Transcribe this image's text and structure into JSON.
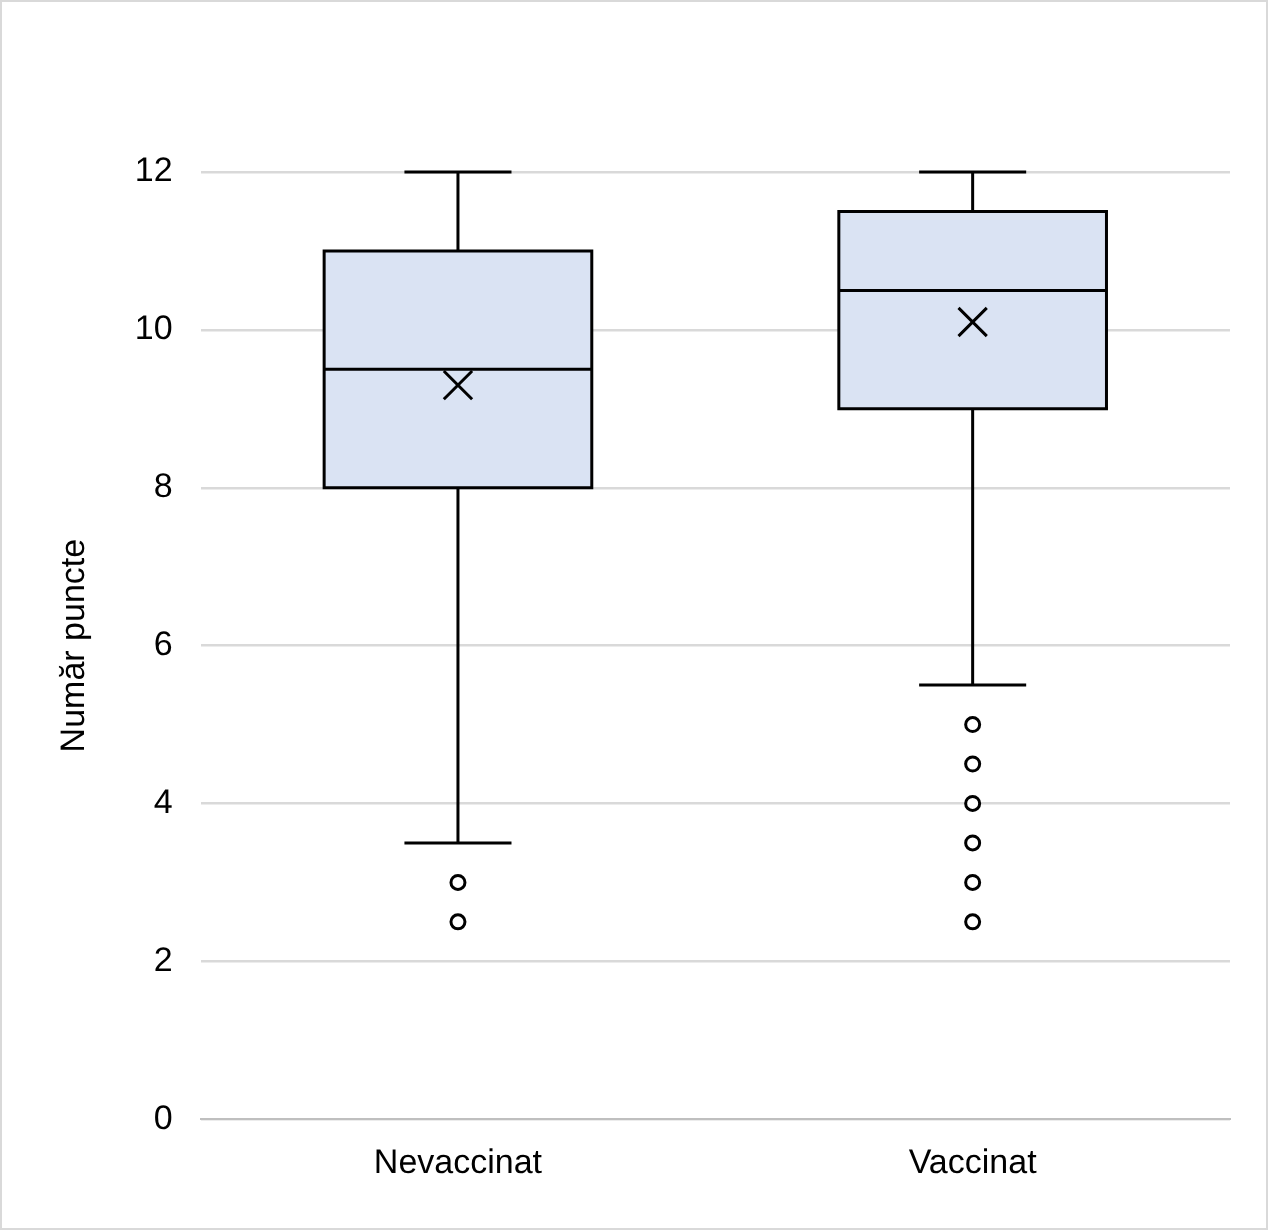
{
  "chart_data": {
    "type": "box",
    "ylabel": "Număr puncte",
    "categories": [
      "Nevaccinat",
      "Vaccinat"
    ],
    "boxes": [
      {
        "low": 3.5,
        "q1": 8,
        "median": 9.5,
        "q3": 11,
        "high": 12,
        "mean": 9.3,
        "outliers": [
          3,
          2.5
        ]
      },
      {
        "low": 5.5,
        "q1": 9,
        "median": 10.5,
        "q3": 11.5,
        "high": 12,
        "mean": 10.1,
        "outliers": [
          5,
          4.5,
          4,
          3.5,
          3,
          2.5
        ]
      }
    ],
    "color": "#dae3f3",
    "ylim": [
      0,
      12
    ],
    "yticks": [
      0,
      2,
      4,
      6,
      8,
      10,
      12
    ],
    "grid": "y"
  }
}
